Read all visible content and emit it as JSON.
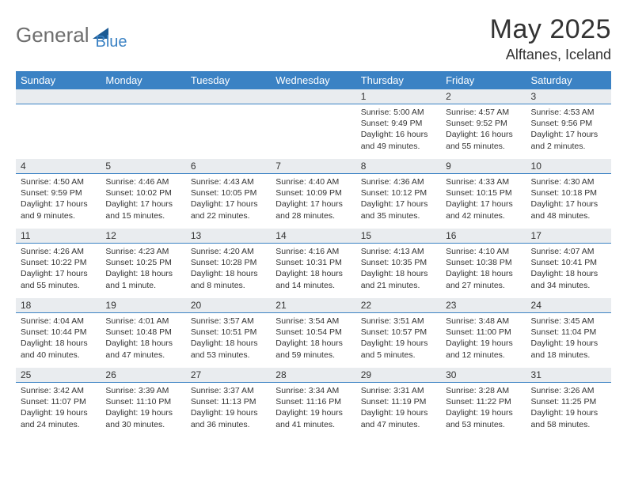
{
  "logo": {
    "main": "General",
    "sub": "Blue"
  },
  "title": {
    "monthYear": "May 2025",
    "location": "Alftanes, Iceland"
  },
  "colors": {
    "headerBlue": "#3b82c4",
    "dayBarGray": "#e9ecef",
    "logoGray": "#6e6e6e",
    "text": "#333333",
    "background": "#ffffff"
  },
  "fonts": {
    "title_fontsize": 34,
    "location_fontsize": 18,
    "dayheader_fontsize": 13,
    "body_fontsize": 10.5
  },
  "dayNames": [
    "Sunday",
    "Monday",
    "Tuesday",
    "Wednesday",
    "Thursday",
    "Friday",
    "Saturday"
  ],
  "weeks": [
    [
      null,
      null,
      null,
      null,
      {
        "n": "1",
        "sr": "Sunrise: 5:00 AM",
        "ss": "Sunset: 9:49 PM",
        "dl": "Daylight: 16 hours and 49 minutes."
      },
      {
        "n": "2",
        "sr": "Sunrise: 4:57 AM",
        "ss": "Sunset: 9:52 PM",
        "dl": "Daylight: 16 hours and 55 minutes."
      },
      {
        "n": "3",
        "sr": "Sunrise: 4:53 AM",
        "ss": "Sunset: 9:56 PM",
        "dl": "Daylight: 17 hours and 2 minutes."
      }
    ],
    [
      {
        "n": "4",
        "sr": "Sunrise: 4:50 AM",
        "ss": "Sunset: 9:59 PM",
        "dl": "Daylight: 17 hours and 9 minutes."
      },
      {
        "n": "5",
        "sr": "Sunrise: 4:46 AM",
        "ss": "Sunset: 10:02 PM",
        "dl": "Daylight: 17 hours and 15 minutes."
      },
      {
        "n": "6",
        "sr": "Sunrise: 4:43 AM",
        "ss": "Sunset: 10:05 PM",
        "dl": "Daylight: 17 hours and 22 minutes."
      },
      {
        "n": "7",
        "sr": "Sunrise: 4:40 AM",
        "ss": "Sunset: 10:09 PM",
        "dl": "Daylight: 17 hours and 28 minutes."
      },
      {
        "n": "8",
        "sr": "Sunrise: 4:36 AM",
        "ss": "Sunset: 10:12 PM",
        "dl": "Daylight: 17 hours and 35 minutes."
      },
      {
        "n": "9",
        "sr": "Sunrise: 4:33 AM",
        "ss": "Sunset: 10:15 PM",
        "dl": "Daylight: 17 hours and 42 minutes."
      },
      {
        "n": "10",
        "sr": "Sunrise: 4:30 AM",
        "ss": "Sunset: 10:18 PM",
        "dl": "Daylight: 17 hours and 48 minutes."
      }
    ],
    [
      {
        "n": "11",
        "sr": "Sunrise: 4:26 AM",
        "ss": "Sunset: 10:22 PM",
        "dl": "Daylight: 17 hours and 55 minutes."
      },
      {
        "n": "12",
        "sr": "Sunrise: 4:23 AM",
        "ss": "Sunset: 10:25 PM",
        "dl": "Daylight: 18 hours and 1 minute."
      },
      {
        "n": "13",
        "sr": "Sunrise: 4:20 AM",
        "ss": "Sunset: 10:28 PM",
        "dl": "Daylight: 18 hours and 8 minutes."
      },
      {
        "n": "14",
        "sr": "Sunrise: 4:16 AM",
        "ss": "Sunset: 10:31 PM",
        "dl": "Daylight: 18 hours and 14 minutes."
      },
      {
        "n": "15",
        "sr": "Sunrise: 4:13 AM",
        "ss": "Sunset: 10:35 PM",
        "dl": "Daylight: 18 hours and 21 minutes."
      },
      {
        "n": "16",
        "sr": "Sunrise: 4:10 AM",
        "ss": "Sunset: 10:38 PM",
        "dl": "Daylight: 18 hours and 27 minutes."
      },
      {
        "n": "17",
        "sr": "Sunrise: 4:07 AM",
        "ss": "Sunset: 10:41 PM",
        "dl": "Daylight: 18 hours and 34 minutes."
      }
    ],
    [
      {
        "n": "18",
        "sr": "Sunrise: 4:04 AM",
        "ss": "Sunset: 10:44 PM",
        "dl": "Daylight: 18 hours and 40 minutes."
      },
      {
        "n": "19",
        "sr": "Sunrise: 4:01 AM",
        "ss": "Sunset: 10:48 PM",
        "dl": "Daylight: 18 hours and 47 minutes."
      },
      {
        "n": "20",
        "sr": "Sunrise: 3:57 AM",
        "ss": "Sunset: 10:51 PM",
        "dl": "Daylight: 18 hours and 53 minutes."
      },
      {
        "n": "21",
        "sr": "Sunrise: 3:54 AM",
        "ss": "Sunset: 10:54 PM",
        "dl": "Daylight: 18 hours and 59 minutes."
      },
      {
        "n": "22",
        "sr": "Sunrise: 3:51 AM",
        "ss": "Sunset: 10:57 PM",
        "dl": "Daylight: 19 hours and 5 minutes."
      },
      {
        "n": "23",
        "sr": "Sunrise: 3:48 AM",
        "ss": "Sunset: 11:00 PM",
        "dl": "Daylight: 19 hours and 12 minutes."
      },
      {
        "n": "24",
        "sr": "Sunrise: 3:45 AM",
        "ss": "Sunset: 11:04 PM",
        "dl": "Daylight: 19 hours and 18 minutes."
      }
    ],
    [
      {
        "n": "25",
        "sr": "Sunrise: 3:42 AM",
        "ss": "Sunset: 11:07 PM",
        "dl": "Daylight: 19 hours and 24 minutes."
      },
      {
        "n": "26",
        "sr": "Sunrise: 3:39 AM",
        "ss": "Sunset: 11:10 PM",
        "dl": "Daylight: 19 hours and 30 minutes."
      },
      {
        "n": "27",
        "sr": "Sunrise: 3:37 AM",
        "ss": "Sunset: 11:13 PM",
        "dl": "Daylight: 19 hours and 36 minutes."
      },
      {
        "n": "28",
        "sr": "Sunrise: 3:34 AM",
        "ss": "Sunset: 11:16 PM",
        "dl": "Daylight: 19 hours and 41 minutes."
      },
      {
        "n": "29",
        "sr": "Sunrise: 3:31 AM",
        "ss": "Sunset: 11:19 PM",
        "dl": "Daylight: 19 hours and 47 minutes."
      },
      {
        "n": "30",
        "sr": "Sunrise: 3:28 AM",
        "ss": "Sunset: 11:22 PM",
        "dl": "Daylight: 19 hours and 53 minutes."
      },
      {
        "n": "31",
        "sr": "Sunrise: 3:26 AM",
        "ss": "Sunset: 11:25 PM",
        "dl": "Daylight: 19 hours and 58 minutes."
      }
    ]
  ]
}
